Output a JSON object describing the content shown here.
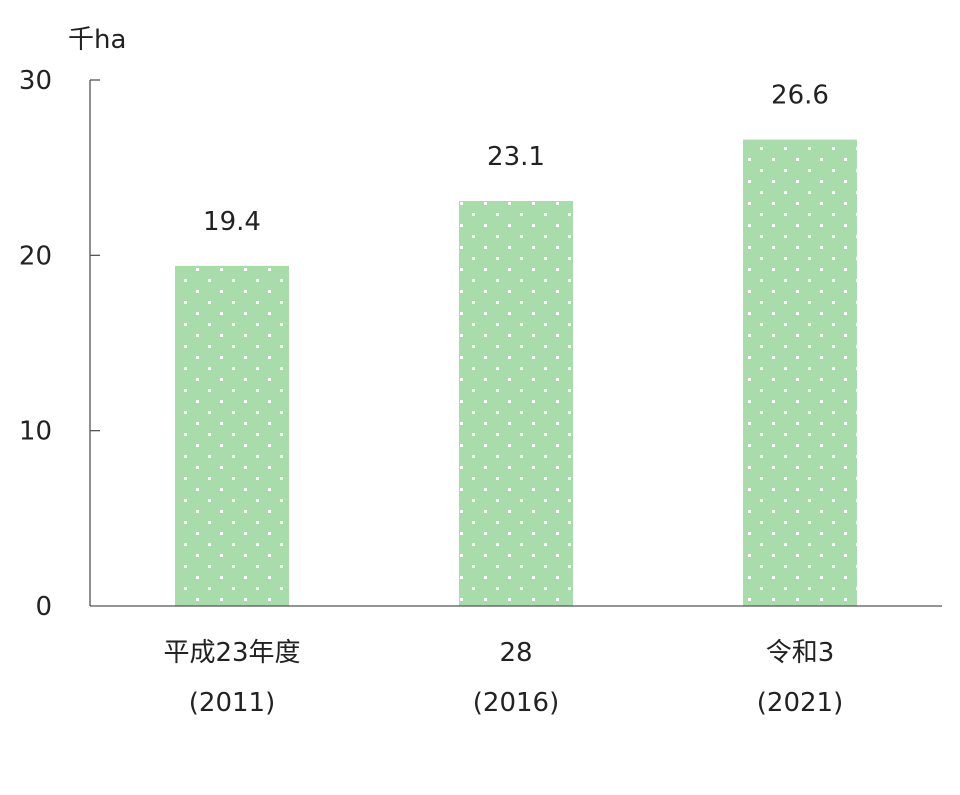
{
  "chart_data": {
    "type": "bar",
    "unit_label": "千ha",
    "categories": [
      {
        "line1": "平成23年度",
        "line2": "(2011)"
      },
      {
        "line1": "28",
        "line2": "(2016)"
      },
      {
        "line1": "令和3",
        "line2": "(2021)"
      }
    ],
    "values": [
      19.4,
      23.1,
      26.6
    ],
    "value_labels": [
      "19.4",
      "23.1",
      "26.6"
    ],
    "ylim": [
      0,
      30
    ],
    "yticks": [
      0,
      10,
      20,
      30
    ],
    "grid": false,
    "colors": {
      "bar_fill": "#a8dcab",
      "dot": "#ffffff",
      "axis": "#555555"
    }
  }
}
